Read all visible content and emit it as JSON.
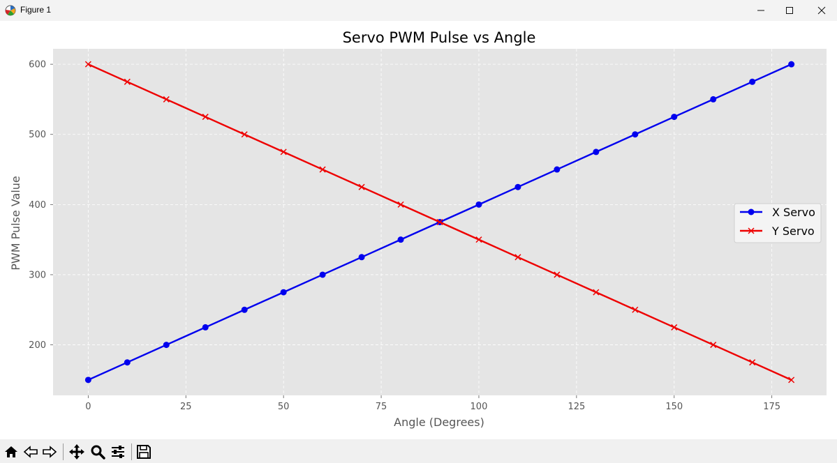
{
  "window": {
    "title": "Figure 1"
  },
  "toolbar": {
    "buttons": [
      {
        "name": "home-icon"
      },
      {
        "name": "back-icon"
      },
      {
        "name": "forward-icon"
      },
      {
        "name": "pan-icon"
      },
      {
        "name": "zoom-icon"
      },
      {
        "name": "configure-subplots-icon"
      },
      {
        "name": "save-icon"
      }
    ]
  },
  "chart_data": {
    "type": "line",
    "title": "Servo PWM Pulse vs Angle",
    "xlabel": "Angle (Degrees)",
    "ylabel": "PWM Pulse Value",
    "xlim": [
      -9,
      189
    ],
    "ylim": [
      128,
      622
    ],
    "xticks": [
      0,
      25,
      50,
      75,
      100,
      125,
      150,
      175
    ],
    "yticks": [
      200,
      300,
      400,
      500,
      600
    ],
    "grid": true,
    "legend_position": "center-right",
    "background": "#e5e5e5",
    "x": [
      0,
      10,
      20,
      30,
      40,
      50,
      60,
      70,
      80,
      90,
      100,
      110,
      120,
      130,
      140,
      150,
      160,
      170,
      180
    ],
    "series": [
      {
        "name": "X Servo",
        "color": "#0000ee",
        "marker": "circle",
        "values": [
          150,
          175,
          200,
          225,
          250,
          275,
          300,
          325,
          350,
          375,
          400,
          425,
          450,
          475,
          500,
          525,
          550,
          575,
          600
        ]
      },
      {
        "name": "Y Servo",
        "color": "#ee0000",
        "marker": "x",
        "values": [
          600,
          575,
          550,
          525,
          500,
          475,
          450,
          425,
          400,
          375,
          350,
          325,
          300,
          275,
          250,
          225,
          200,
          175,
          150
        ]
      }
    ]
  }
}
